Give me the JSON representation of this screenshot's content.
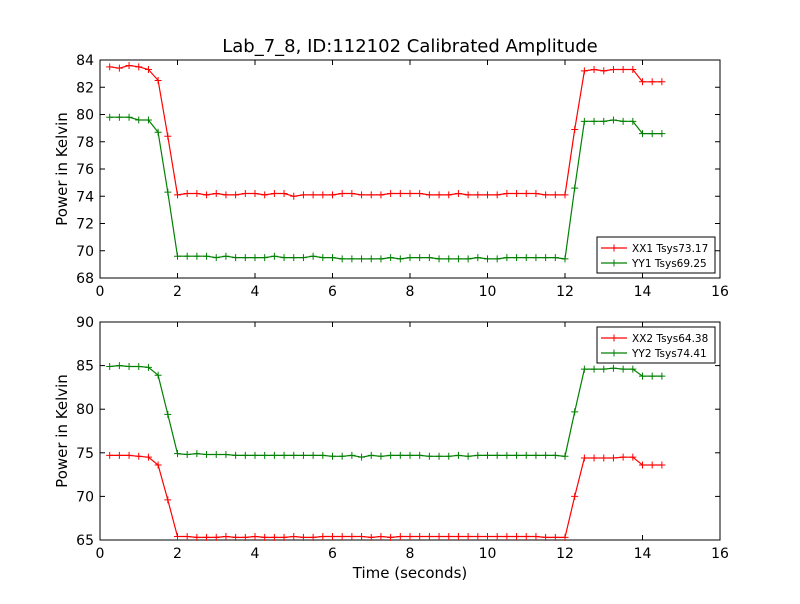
{
  "title": "Lab_7_8, ID:112102 Calibrated Amplitude",
  "colors": {
    "xx": "#ff0000",
    "yy": "#008000"
  },
  "chart_data": [
    {
      "type": "line",
      "xlabel": "",
      "ylabel": "Power in Kelvin",
      "xlim": [
        0,
        16
      ],
      "ylim": [
        68,
        84
      ],
      "xticks": [
        0,
        2,
        4,
        6,
        8,
        10,
        12,
        14,
        16
      ],
      "yticks": [
        68,
        70,
        72,
        74,
        76,
        78,
        80,
        82,
        84
      ],
      "legend_position": "lower right",
      "x": [
        0.25,
        0.5,
        0.75,
        1.0,
        1.25,
        1.5,
        1.75,
        2.0,
        2.25,
        2.5,
        2.75,
        3.0,
        3.25,
        3.5,
        3.75,
        4.0,
        4.25,
        4.5,
        4.75,
        5.0,
        5.25,
        5.5,
        5.75,
        6.0,
        6.25,
        6.5,
        6.75,
        7.0,
        7.25,
        7.5,
        7.75,
        8.0,
        8.25,
        8.5,
        8.75,
        9.0,
        9.25,
        9.5,
        9.75,
        10.0,
        10.25,
        10.5,
        10.75,
        11.0,
        11.25,
        11.5,
        11.75,
        12.0,
        12.25,
        12.5,
        12.75,
        13.0,
        13.25,
        13.5,
        13.75,
        14.0,
        14.25,
        14.5
      ],
      "series": [
        {
          "name": "XX1 Tsys73.17",
          "color": "#ff0000",
          "values": [
            83.5,
            83.4,
            83.6,
            83.5,
            83.3,
            82.5,
            78.4,
            74.1,
            74.2,
            74.2,
            74.1,
            74.2,
            74.1,
            74.1,
            74.2,
            74.2,
            74.1,
            74.2,
            74.2,
            74.0,
            74.1,
            74.1,
            74.1,
            74.1,
            74.2,
            74.2,
            74.1,
            74.1,
            74.1,
            74.2,
            74.2,
            74.2,
            74.2,
            74.1,
            74.1,
            74.1,
            74.2,
            74.1,
            74.1,
            74.1,
            74.1,
            74.2,
            74.2,
            74.2,
            74.2,
            74.1,
            74.1,
            74.1,
            78.9,
            83.2,
            83.3,
            83.2,
            83.3,
            83.3,
            83.3,
            82.4,
            82.4,
            82.4
          ]
        },
        {
          "name": "YY1 Tsys69.25",
          "color": "#008000",
          "values": [
            79.8,
            79.8,
            79.8,
            79.6,
            79.6,
            78.7,
            74.3,
            69.6,
            69.6,
            69.6,
            69.6,
            69.5,
            69.6,
            69.5,
            69.5,
            69.5,
            69.5,
            69.6,
            69.5,
            69.5,
            69.5,
            69.6,
            69.5,
            69.5,
            69.4,
            69.4,
            69.4,
            69.4,
            69.4,
            69.5,
            69.4,
            69.5,
            69.5,
            69.5,
            69.4,
            69.4,
            69.4,
            69.4,
            69.5,
            69.4,
            69.4,
            69.5,
            69.5,
            69.5,
            69.5,
            69.5,
            69.5,
            69.4,
            74.6,
            79.5,
            79.5,
            79.5,
            79.6,
            79.5,
            79.5,
            78.6,
            78.6,
            78.6
          ]
        }
      ]
    },
    {
      "type": "line",
      "xlabel": "Time (seconds)",
      "ylabel": "Power in Kelvin",
      "xlim": [
        0,
        16
      ],
      "ylim": [
        65,
        90
      ],
      "xticks": [
        0,
        2,
        4,
        6,
        8,
        10,
        12,
        14,
        16
      ],
      "yticks": [
        65,
        70,
        75,
        80,
        85,
        90
      ],
      "legend_position": "upper right",
      "x": [
        0.25,
        0.5,
        0.75,
        1.0,
        1.25,
        1.5,
        1.75,
        2.0,
        2.25,
        2.5,
        2.75,
        3.0,
        3.25,
        3.5,
        3.75,
        4.0,
        4.25,
        4.5,
        4.75,
        5.0,
        5.25,
        5.5,
        5.75,
        6.0,
        6.25,
        6.5,
        6.75,
        7.0,
        7.25,
        7.5,
        7.75,
        8.0,
        8.25,
        8.5,
        8.75,
        9.0,
        9.25,
        9.5,
        9.75,
        10.0,
        10.25,
        10.5,
        10.75,
        11.0,
        11.25,
        11.5,
        11.75,
        12.0,
        12.25,
        12.5,
        12.75,
        13.0,
        13.25,
        13.5,
        13.75,
        14.0,
        14.25,
        14.5
      ],
      "series": [
        {
          "name": "XX2 Tsys64.38",
          "color": "#ff0000",
          "values": [
            74.7,
            74.7,
            74.7,
            74.6,
            74.5,
            73.6,
            69.6,
            65.4,
            65.4,
            65.3,
            65.3,
            65.3,
            65.4,
            65.3,
            65.3,
            65.4,
            65.3,
            65.3,
            65.3,
            65.4,
            65.3,
            65.3,
            65.4,
            65.4,
            65.4,
            65.4,
            65.4,
            65.3,
            65.4,
            65.3,
            65.4,
            65.4,
            65.4,
            65.4,
            65.4,
            65.4,
            65.4,
            65.4,
            65.4,
            65.4,
            65.4,
            65.4,
            65.4,
            65.4,
            65.4,
            65.3,
            65.3,
            65.3,
            70.0,
            74.4,
            74.4,
            74.4,
            74.4,
            74.5,
            74.5,
            73.6,
            73.6,
            73.6
          ]
        },
        {
          "name": "YY2 Tsys74.41",
          "color": "#008000",
          "values": [
            84.9,
            85.0,
            84.9,
            84.9,
            84.8,
            83.9,
            79.4,
            74.9,
            74.8,
            74.9,
            74.8,
            74.8,
            74.8,
            74.7,
            74.7,
            74.7,
            74.7,
            74.7,
            74.7,
            74.7,
            74.7,
            74.7,
            74.7,
            74.6,
            74.6,
            74.7,
            74.5,
            74.7,
            74.6,
            74.7,
            74.7,
            74.7,
            74.7,
            74.6,
            74.6,
            74.6,
            74.7,
            74.6,
            74.7,
            74.7,
            74.7,
            74.7,
            74.7,
            74.7,
            74.7,
            74.7,
            74.7,
            74.6,
            79.7,
            84.6,
            84.6,
            84.6,
            84.7,
            84.6,
            84.6,
            83.8,
            83.8,
            83.8
          ]
        }
      ]
    }
  ]
}
